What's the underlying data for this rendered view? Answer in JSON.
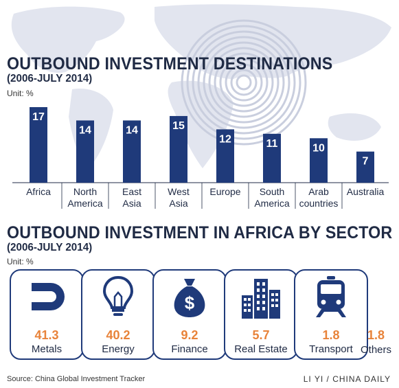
{
  "colors": {
    "bar": "#1f3a7a",
    "accent": "#e8833a",
    "text": "#1f2a44",
    "map": "#dfe2ee"
  },
  "section1": {
    "title": "OUTBOUND INVESTMENT DESTINATIONS",
    "subtitle": "(2006-JULY 2014)",
    "unit": "Unit: %"
  },
  "chart_data": {
    "type": "bar",
    "title": "OUTBOUND INVESTMENT DESTINATIONS",
    "subtitle": "(2006-JULY 2014)",
    "unit": "Unit: %",
    "categories": [
      [
        "Africa"
      ],
      [
        "North",
        "America"
      ],
      [
        "East",
        "Asia"
      ],
      [
        "West",
        "Asia"
      ],
      [
        "Europe"
      ],
      [
        "South",
        "America"
      ],
      [
        "Arab",
        "countries"
      ],
      [
        "Australia"
      ]
    ],
    "values": [
      17,
      14,
      14,
      15,
      12,
      11,
      10,
      7
    ],
    "ylim": [
      0,
      17
    ],
    "grid": false,
    "legend": "none"
  },
  "section2": {
    "title": "OUTBOUND INVESTMENT IN AFRICA BY SECTOR",
    "subtitle": "(2006-JULY 2014)",
    "unit": "Unit: %",
    "sectors": [
      {
        "label": "Metals",
        "value": "41.3",
        "icon": "magnet-icon"
      },
      {
        "label": "Energy",
        "value": "40.2",
        "icon": "lightbulb-icon"
      },
      {
        "label": "Finance",
        "value": "9.2",
        "icon": "money-bag-icon"
      },
      {
        "label": "Real Estate",
        "value": "5.7",
        "icon": "buildings-icon"
      },
      {
        "label": "Transport",
        "value": "1.8",
        "icon": "train-icon"
      }
    ],
    "others": {
      "label": "Others",
      "value": "1.8"
    }
  },
  "footer": {
    "source": "Source: China Global Investment Tracker",
    "credit": "LI YI / CHINA DAILY"
  }
}
